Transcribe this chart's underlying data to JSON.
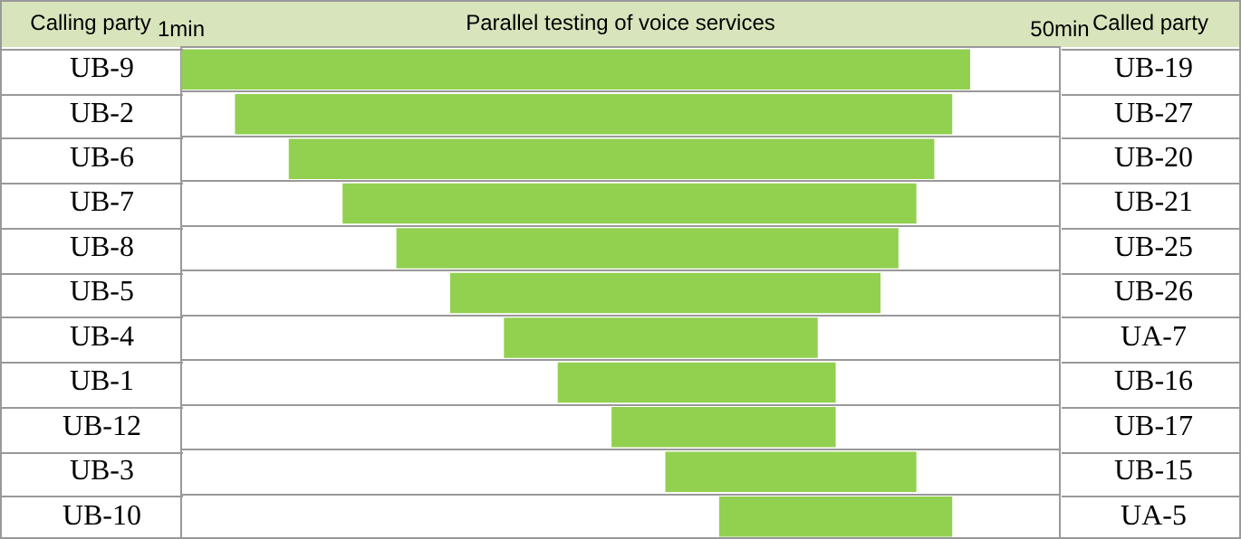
{
  "chart_data": {
    "type": "bar",
    "orientation": "horizontal",
    "title": "Parallel testing of voice services",
    "ylabel": "Calling party",
    "y2label": "Called party",
    "categories": [
      "UB-9",
      "UB-2",
      "UB-6",
      "UB-7",
      "UB-8",
      "UB-5",
      "UB-4",
      "UB-1",
      "UB-12",
      "UB-3",
      "UB-10"
    ],
    "y2_categories": [
      "UB-19",
      "UB-27",
      "UB-20",
      "UB-21",
      "UB-25",
      "UB-26",
      "UA-7",
      "UB-16",
      "UB-17",
      "UB-15",
      "UA-5"
    ],
    "base": [
      1,
      4,
      7,
      10,
      13,
      16,
      19,
      22,
      25,
      28,
      31
    ],
    "values": [
      44,
      40,
      36,
      32,
      28,
      24,
      17.5,
      15.5,
      12.5,
      14,
      13
    ],
    "color": "#92d050",
    "xlim": [
      1,
      50
    ],
    "xticks": [
      {
        "value": 1,
        "label": "1min"
      },
      {
        "value": 50,
        "label": "50min"
      }
    ],
    "grid": "y"
  }
}
